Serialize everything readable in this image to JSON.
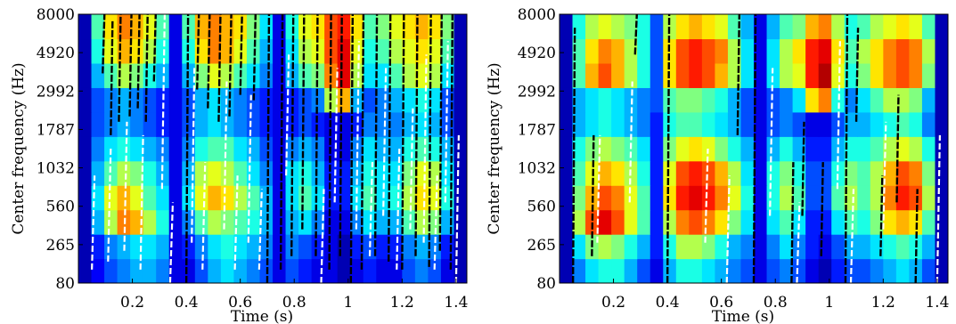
{
  "chart_data": [
    {
      "type": "heatmap",
      "panel": "left",
      "ylabel": "Center frequency (Hz)",
      "xlabel": "Time (s)",
      "xlim": [
        0,
        1.44
      ],
      "y_ticks": [
        "80",
        "265",
        "560",
        "1032",
        "1787",
        "2992",
        "4920",
        "8000"
      ],
      "x_ticks": [
        "0.2",
        "0.4",
        "0.6",
        "0.8",
        "1",
        "1.2",
        "1.4"
      ],
      "x_tick_values": [
        0.2,
        0.4,
        0.6,
        0.8,
        1.0,
        1.2,
        1.4
      ],
      "colormap": "jet",
      "contours": "dense black and white segment boundaries throughout",
      "rows": [
        [
          0.05,
          0.12,
          0.2,
          0.25,
          0.3,
          0.3,
          0.25,
          0.1,
          0.1,
          0.2,
          0.3,
          0.35,
          0.3,
          0.25,
          0.2,
          0.1,
          0.2,
          0.15,
          0.1,
          0.1,
          0.05,
          0.1,
          0.15,
          0.1,
          0.1,
          0.2,
          0.25,
          0.2,
          0.1,
          0.05
        ],
        [
          0.05,
          0.15,
          0.25,
          0.3,
          0.35,
          0.35,
          0.3,
          0.1,
          0.15,
          0.25,
          0.35,
          0.4,
          0.35,
          0.3,
          0.25,
          0.1,
          0.25,
          0.2,
          0.15,
          0.1,
          0.05,
          0.15,
          0.2,
          0.15,
          0.15,
          0.25,
          0.3,
          0.25,
          0.15,
          0.05
        ],
        [
          0.05,
          0.3,
          0.55,
          0.75,
          0.7,
          0.55,
          0.4,
          0.1,
          0.25,
          0.45,
          0.55,
          0.5,
          0.45,
          0.4,
          0.3,
          0.1,
          0.3,
          0.35,
          0.25,
          0.1,
          0.1,
          0.25,
          0.35,
          0.3,
          0.3,
          0.45,
          0.55,
          0.5,
          0.3,
          0.05
        ],
        [
          0.05,
          0.35,
          0.6,
          0.7,
          0.6,
          0.45,
          0.35,
          0.1,
          0.35,
          0.6,
          0.7,
          0.65,
          0.55,
          0.45,
          0.3,
          0.1,
          0.35,
          0.45,
          0.35,
          0.15,
          0.15,
          0.35,
          0.45,
          0.35,
          0.4,
          0.55,
          0.65,
          0.6,
          0.4,
          0.05
        ],
        [
          0.05,
          0.3,
          0.45,
          0.55,
          0.5,
          0.4,
          0.3,
          0.1,
          0.3,
          0.55,
          0.6,
          0.55,
          0.45,
          0.35,
          0.25,
          0.1,
          0.35,
          0.4,
          0.3,
          0.15,
          0.15,
          0.3,
          0.4,
          0.35,
          0.35,
          0.5,
          0.6,
          0.55,
          0.35,
          0.05
        ],
        [
          0.05,
          0.25,
          0.35,
          0.4,
          0.35,
          0.3,
          0.25,
          0.1,
          0.25,
          0.4,
          0.45,
          0.45,
          0.35,
          0.3,
          0.2,
          0.1,
          0.25,
          0.3,
          0.25,
          0.1,
          0.1,
          0.25,
          0.35,
          0.3,
          0.3,
          0.4,
          0.45,
          0.4,
          0.3,
          0.05
        ],
        [
          0.05,
          0.2,
          0.25,
          0.3,
          0.25,
          0.2,
          0.15,
          0.1,
          0.2,
          0.3,
          0.35,
          0.3,
          0.25,
          0.2,
          0.15,
          0.1,
          0.15,
          0.2,
          0.15,
          0.1,
          0.1,
          0.15,
          0.25,
          0.25,
          0.25,
          0.3,
          0.35,
          0.3,
          0.2,
          0.05
        ],
        [
          0.05,
          0.2,
          0.25,
          0.3,
          0.25,
          0.2,
          0.15,
          0.1,
          0.2,
          0.3,
          0.35,
          0.3,
          0.25,
          0.2,
          0.15,
          0.1,
          0.15,
          0.2,
          0.25,
          0.55,
          0.7,
          0.3,
          0.2,
          0.25,
          0.3,
          0.35,
          0.4,
          0.35,
          0.2,
          0.05
        ],
        [
          0.05,
          0.3,
          0.45,
          0.55,
          0.5,
          0.4,
          0.3,
          0.1,
          0.3,
          0.5,
          0.6,
          0.55,
          0.45,
          0.35,
          0.25,
          0.1,
          0.3,
          0.45,
          0.5,
          0.75,
          0.9,
          0.55,
          0.35,
          0.35,
          0.45,
          0.55,
          0.6,
          0.55,
          0.35,
          0.05
        ],
        [
          0.05,
          0.4,
          0.6,
          0.7,
          0.65,
          0.55,
          0.4,
          0.1,
          0.4,
          0.65,
          0.75,
          0.7,
          0.6,
          0.45,
          0.3,
          0.1,
          0.35,
          0.55,
          0.6,
          0.8,
          0.9,
          0.6,
          0.4,
          0.45,
          0.55,
          0.6,
          0.65,
          0.6,
          0.45,
          0.05
        ],
        [
          0.05,
          0.45,
          0.65,
          0.75,
          0.7,
          0.6,
          0.45,
          0.1,
          0.45,
          0.7,
          0.75,
          0.7,
          0.65,
          0.5,
          0.35,
          0.1,
          0.4,
          0.6,
          0.65,
          0.8,
          0.85,
          0.65,
          0.45,
          0.5,
          0.6,
          0.65,
          0.7,
          0.65,
          0.5,
          0.05
        ]
      ],
      "black_contours": [
        [
          0.09,
          0.78,
          1.0
        ],
        [
          0.12,
          0.55,
          0.98
        ],
        [
          0.15,
          0.6,
          1.0
        ],
        [
          0.19,
          0.62,
          1.0
        ],
        [
          0.22,
          0.65,
          1.0
        ],
        [
          0.25,
          0.6,
          1.0
        ],
        [
          0.28,
          0.75,
          1.0
        ],
        [
          0.4,
          0.0,
          1.0
        ],
        [
          0.44,
          0.72,
          1.0
        ],
        [
          0.48,
          0.65,
          1.0
        ],
        [
          0.52,
          0.6,
          1.0
        ],
        [
          0.56,
          0.62,
          1.0
        ],
        [
          0.6,
          0.7,
          1.0
        ],
        [
          0.65,
          0.68,
          1.0
        ],
        [
          0.7,
          0.0,
          1.0
        ],
        [
          0.75,
          0.05,
          1.0
        ],
        [
          0.79,
          0.1,
          1.0
        ],
        [
          0.83,
          0.2,
          1.0
        ],
        [
          0.88,
          0.1,
          1.0
        ],
        [
          0.93,
          0.05,
          1.0
        ],
        [
          0.97,
          0.1,
          1.0
        ],
        [
          1.01,
          0.0,
          1.0
        ],
        [
          1.05,
          0.05,
          1.0
        ],
        [
          1.1,
          0.1,
          1.0
        ],
        [
          1.15,
          0.08,
          1.0
        ],
        [
          1.2,
          0.05,
          1.0
        ],
        [
          1.25,
          0.1,
          1.0
        ],
        [
          1.3,
          0.06,
          1.0
        ],
        [
          1.34,
          0.12,
          1.0
        ],
        [
          1.38,
          0.05,
          1.0
        ]
      ],
      "white_contours": [
        [
          0.05,
          0.05,
          0.4
        ],
        [
          0.11,
          0.08,
          0.5
        ],
        [
          0.17,
          0.12,
          0.6
        ],
        [
          0.23,
          0.05,
          0.55
        ],
        [
          0.31,
          0.35,
          1.0
        ],
        [
          0.34,
          0.0,
          0.3
        ],
        [
          0.42,
          0.15,
          0.8
        ],
        [
          0.46,
          0.05,
          0.45
        ],
        [
          0.54,
          0.2,
          0.75
        ],
        [
          0.58,
          0.05,
          0.4
        ],
        [
          0.63,
          0.15,
          0.7
        ],
        [
          0.67,
          0.05,
          0.35
        ],
        [
          0.77,
          0.4,
          0.85
        ],
        [
          0.9,
          0.0,
          0.35
        ],
        [
          0.95,
          0.3,
          0.8
        ],
        [
          1.03,
          0.2,
          0.9
        ],
        [
          1.08,
          0.1,
          0.45
        ],
        [
          1.13,
          0.25,
          0.8
        ],
        [
          1.18,
          0.05,
          0.5
        ],
        [
          1.23,
          0.2,
          0.65
        ],
        [
          1.28,
          0.15,
          0.85
        ],
        [
          1.32,
          0.05,
          0.4
        ],
        [
          1.36,
          0.3,
          0.9
        ],
        [
          1.4,
          0.0,
          0.55
        ]
      ]
    },
    {
      "type": "heatmap",
      "panel": "right",
      "ylabel": "Center frequency (Hz)",
      "xlabel": "Time (s)",
      "xlim": [
        0,
        1.44
      ],
      "y_ticks": [
        "80",
        "265",
        "560",
        "1032",
        "1787",
        "2992",
        "4920",
        "8000"
      ],
      "x_ticks": [
        "0.2",
        "0.4",
        "0.6",
        "0.8",
        "1",
        "1.2",
        "1.4"
      ],
      "x_tick_values": [
        0.2,
        0.4,
        0.6,
        0.8,
        1.0,
        1.2,
        1.4
      ],
      "colormap": "jet",
      "contours": "sparse black and white segment boundaries",
      "rows": [
        [
          0.05,
          0.25,
          0.35,
          0.4,
          0.4,
          0.3,
          0.2,
          0.1,
          0.3,
          0.4,
          0.4,
          0.35,
          0.3,
          0.25,
          0.2,
          0.1,
          0.2,
          0.25,
          0.2,
          0.1,
          0.05,
          0.15,
          0.2,
          0.2,
          0.25,
          0.3,
          0.35,
          0.3,
          0.2,
          0.05
        ],
        [
          0.05,
          0.35,
          0.5,
          0.55,
          0.5,
          0.4,
          0.3,
          0.15,
          0.4,
          0.55,
          0.55,
          0.5,
          0.4,
          0.3,
          0.25,
          0.1,
          0.25,
          0.35,
          0.25,
          0.15,
          0.1,
          0.2,
          0.3,
          0.3,
          0.35,
          0.4,
          0.45,
          0.4,
          0.3,
          0.05
        ],
        [
          0.05,
          0.55,
          0.8,
          0.9,
          0.8,
          0.6,
          0.45,
          0.15,
          0.55,
          0.75,
          0.8,
          0.75,
          0.65,
          0.5,
          0.35,
          0.1,
          0.35,
          0.45,
          0.35,
          0.15,
          0.15,
          0.35,
          0.45,
          0.4,
          0.5,
          0.65,
          0.7,
          0.65,
          0.45,
          0.05
        ],
        [
          0.05,
          0.5,
          0.7,
          0.8,
          0.75,
          0.6,
          0.45,
          0.15,
          0.65,
          0.85,
          0.9,
          0.85,
          0.75,
          0.6,
          0.4,
          0.1,
          0.4,
          0.55,
          0.45,
          0.2,
          0.2,
          0.45,
          0.55,
          0.45,
          0.55,
          0.75,
          0.85,
          0.8,
          0.55,
          0.05
        ],
        [
          0.05,
          0.45,
          0.6,
          0.7,
          0.65,
          0.55,
          0.4,
          0.15,
          0.6,
          0.8,
          0.85,
          0.8,
          0.7,
          0.55,
          0.35,
          0.1,
          0.4,
          0.5,
          0.4,
          0.2,
          0.2,
          0.4,
          0.5,
          0.45,
          0.55,
          0.7,
          0.8,
          0.75,
          0.5,
          0.05
        ],
        [
          0.05,
          0.4,
          0.5,
          0.55,
          0.5,
          0.45,
          0.35,
          0.15,
          0.5,
          0.6,
          0.65,
          0.6,
          0.5,
          0.4,
          0.3,
          0.1,
          0.3,
          0.4,
          0.3,
          0.15,
          0.15,
          0.3,
          0.4,
          0.4,
          0.45,
          0.55,
          0.6,
          0.55,
          0.4,
          0.05
        ],
        [
          0.05,
          0.3,
          0.35,
          0.4,
          0.35,
          0.3,
          0.25,
          0.15,
          0.4,
          0.45,
          0.45,
          0.4,
          0.35,
          0.3,
          0.2,
          0.1,
          0.2,
          0.25,
          0.2,
          0.1,
          0.1,
          0.2,
          0.3,
          0.3,
          0.35,
          0.4,
          0.45,
          0.4,
          0.25,
          0.05
        ],
        [
          0.05,
          0.3,
          0.35,
          0.4,
          0.35,
          0.3,
          0.25,
          0.2,
          0.45,
          0.5,
          0.5,
          0.45,
          0.4,
          0.3,
          0.2,
          0.1,
          0.2,
          0.25,
          0.35,
          0.65,
          0.75,
          0.4,
          0.25,
          0.35,
          0.45,
          0.55,
          0.55,
          0.5,
          0.3,
          0.05
        ],
        [
          0.05,
          0.45,
          0.7,
          0.8,
          0.7,
          0.55,
          0.4,
          0.2,
          0.65,
          0.8,
          0.85,
          0.8,
          0.7,
          0.55,
          0.35,
          0.1,
          0.35,
          0.55,
          0.6,
          0.85,
          0.95,
          0.6,
          0.4,
          0.5,
          0.65,
          0.75,
          0.8,
          0.75,
          0.5,
          0.05
        ],
        [
          0.05,
          0.45,
          0.65,
          0.75,
          0.7,
          0.55,
          0.4,
          0.2,
          0.65,
          0.8,
          0.85,
          0.8,
          0.75,
          0.55,
          0.35,
          0.1,
          0.35,
          0.55,
          0.65,
          0.85,
          0.9,
          0.65,
          0.45,
          0.55,
          0.65,
          0.75,
          0.8,
          0.75,
          0.55,
          0.05
        ],
        [
          0.05,
          0.4,
          0.55,
          0.6,
          0.55,
          0.5,
          0.4,
          0.2,
          0.55,
          0.65,
          0.7,
          0.65,
          0.6,
          0.45,
          0.3,
          0.1,
          0.3,
          0.45,
          0.5,
          0.7,
          0.75,
          0.55,
          0.4,
          0.45,
          0.55,
          0.6,
          0.65,
          0.6,
          0.45,
          0.05
        ]
      ],
      "black_contours": [
        [
          0.05,
          0.0,
          0.95
        ],
        [
          0.12,
          0.1,
          0.55
        ],
        [
          0.28,
          0.85,
          1.0
        ],
        [
          0.4,
          0.0,
          1.0
        ],
        [
          0.66,
          0.55,
          1.0
        ],
        [
          0.72,
          0.0,
          1.0
        ],
        [
          0.86,
          0.0,
          0.45
        ],
        [
          0.9,
          0.25,
          0.6
        ],
        [
          0.97,
          0.1,
          0.45
        ],
        [
          1.06,
          0.0,
          1.0
        ],
        [
          1.1,
          0.6,
          0.95
        ],
        [
          1.19,
          0.1,
          0.4
        ],
        [
          1.25,
          0.3,
          0.7
        ],
        [
          1.32,
          0.0,
          0.35
        ]
      ],
      "white_contours": [
        [
          0.14,
          0.15,
          0.55
        ],
        [
          0.26,
          0.3,
          0.75
        ],
        [
          0.54,
          0.15,
          0.5
        ],
        [
          0.62,
          0.0,
          0.4
        ],
        [
          0.78,
          0.25,
          0.8
        ],
        [
          0.88,
          0.0,
          0.3
        ],
        [
          1.03,
          0.35,
          0.9
        ],
        [
          1.08,
          0.0,
          0.35
        ],
        [
          1.2,
          0.2,
          0.6
        ],
        [
          1.4,
          0.0,
          0.55
        ]
      ]
    }
  ]
}
